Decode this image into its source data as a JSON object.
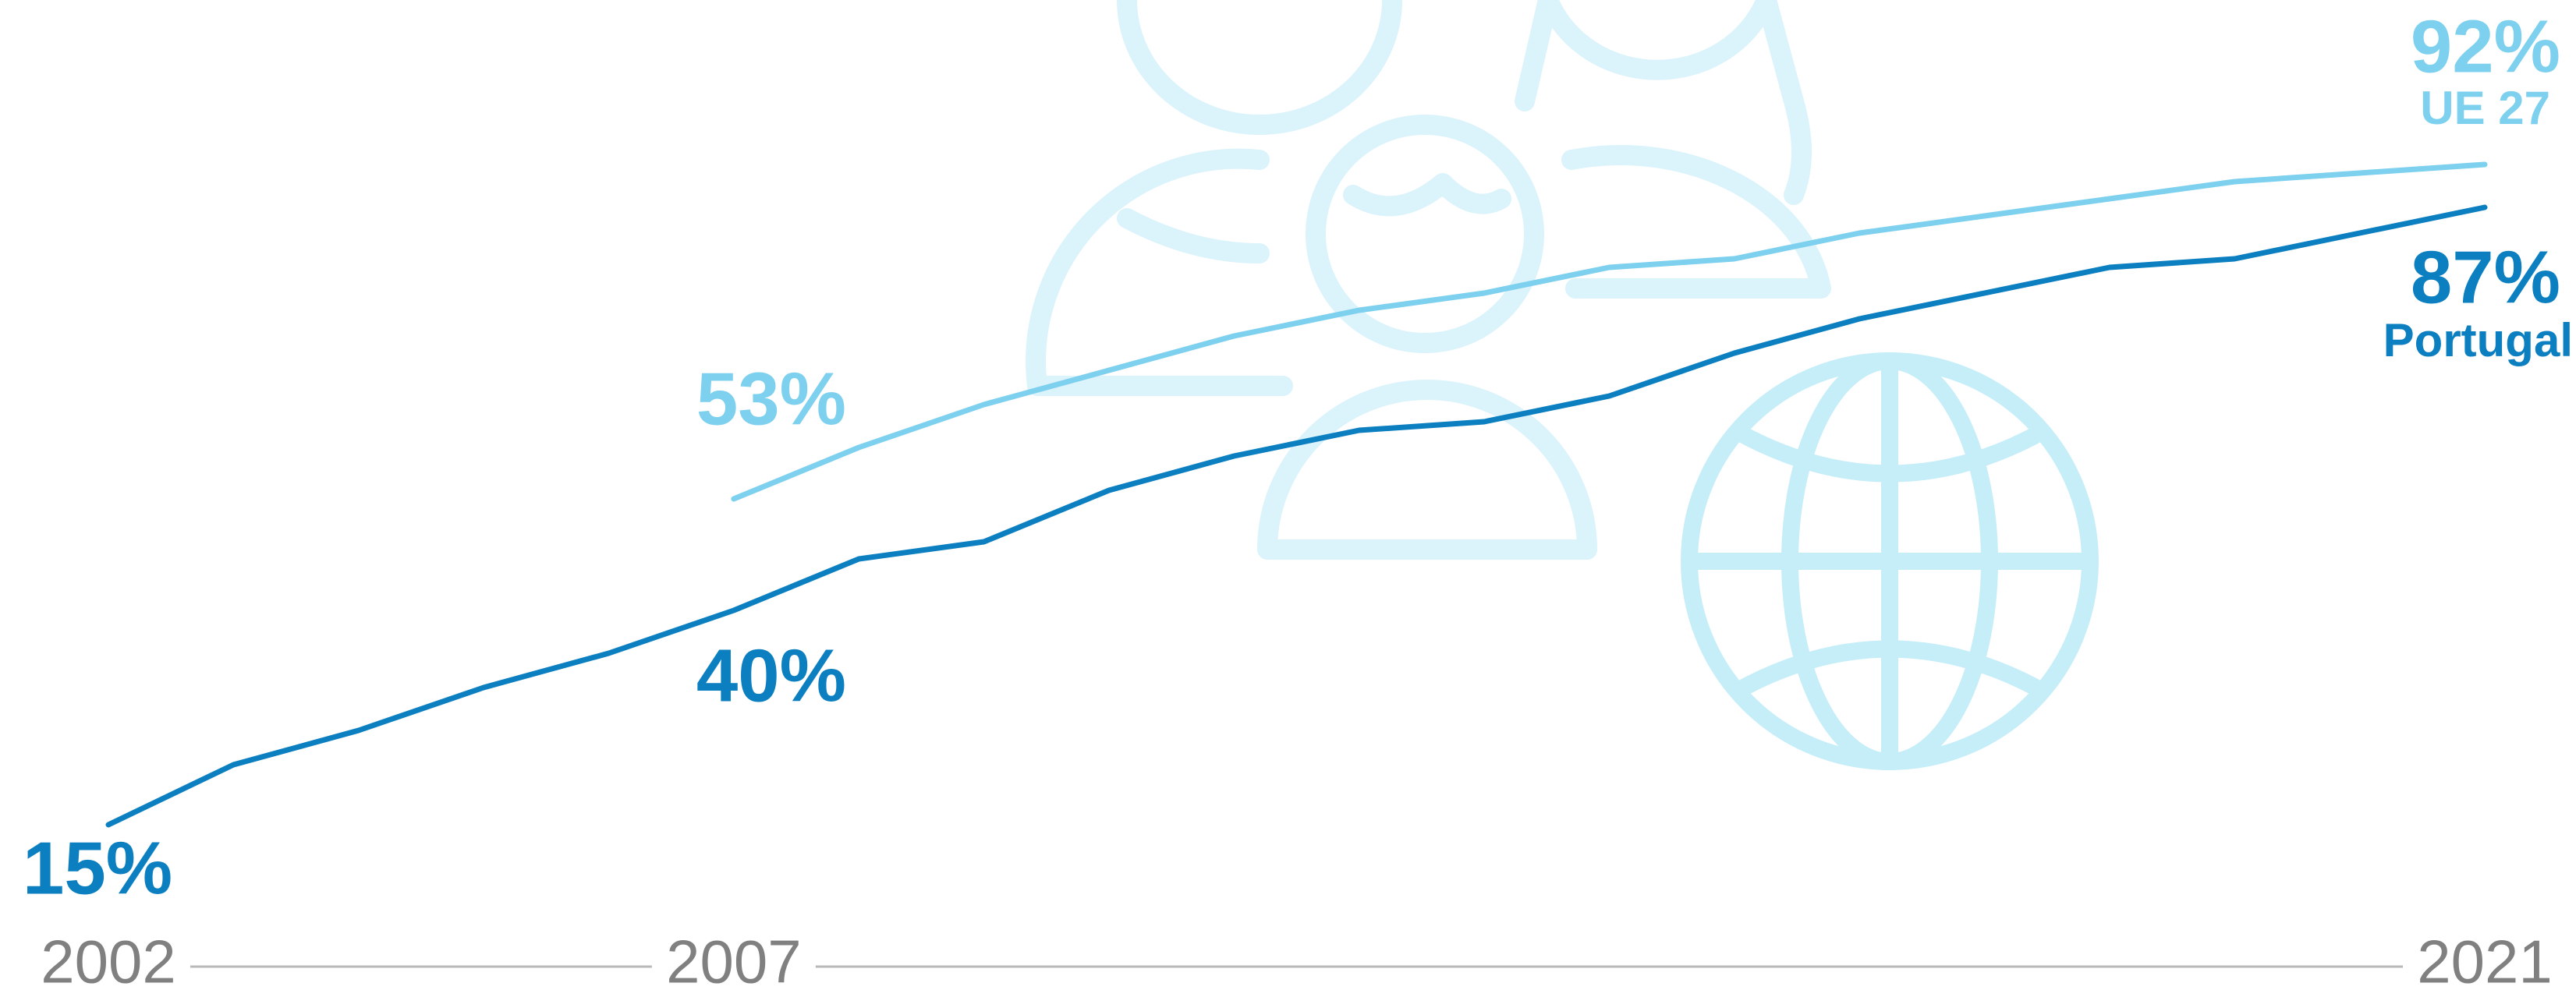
{
  "chart_data": {
    "type": "line",
    "x": [
      2002,
      2003,
      2004,
      2005,
      2006,
      2007,
      2008,
      2009,
      2010,
      2011,
      2012,
      2013,
      2014,
      2015,
      2016,
      2017,
      2018,
      2019,
      2020,
      2021
    ],
    "xlim": [
      2002,
      2021
    ],
    "xticks": [
      2002,
      2007,
      2021
    ],
    "series": [
      {
        "name": "Portugal",
        "color": "#0b7fc0",
        "values": [
          15,
          22,
          26,
          31,
          35,
          40,
          46,
          48,
          54,
          58,
          61,
          62,
          65,
          70,
          74,
          77,
          80,
          81,
          84,
          87
        ],
        "value_labels": [
          "15%",
          null,
          null,
          null,
          null,
          "40%",
          null,
          null,
          null,
          null,
          null,
          null,
          null,
          null,
          null,
          null,
          null,
          null,
          null,
          "87%"
        ]
      },
      {
        "name": "UE 27",
        "color": "#7ed0ef",
        "values": [
          null,
          null,
          null,
          null,
          null,
          53,
          59,
          64,
          68,
          72,
          75,
          77,
          80,
          81,
          84,
          86,
          88,
          90,
          91,
          92
        ],
        "value_labels": [
          null,
          null,
          null,
          null,
          null,
          "53%",
          null,
          null,
          null,
          null,
          null,
          null,
          null,
          null,
          null,
          null,
          null,
          null,
          null,
          "92%"
        ]
      }
    ]
  }
}
